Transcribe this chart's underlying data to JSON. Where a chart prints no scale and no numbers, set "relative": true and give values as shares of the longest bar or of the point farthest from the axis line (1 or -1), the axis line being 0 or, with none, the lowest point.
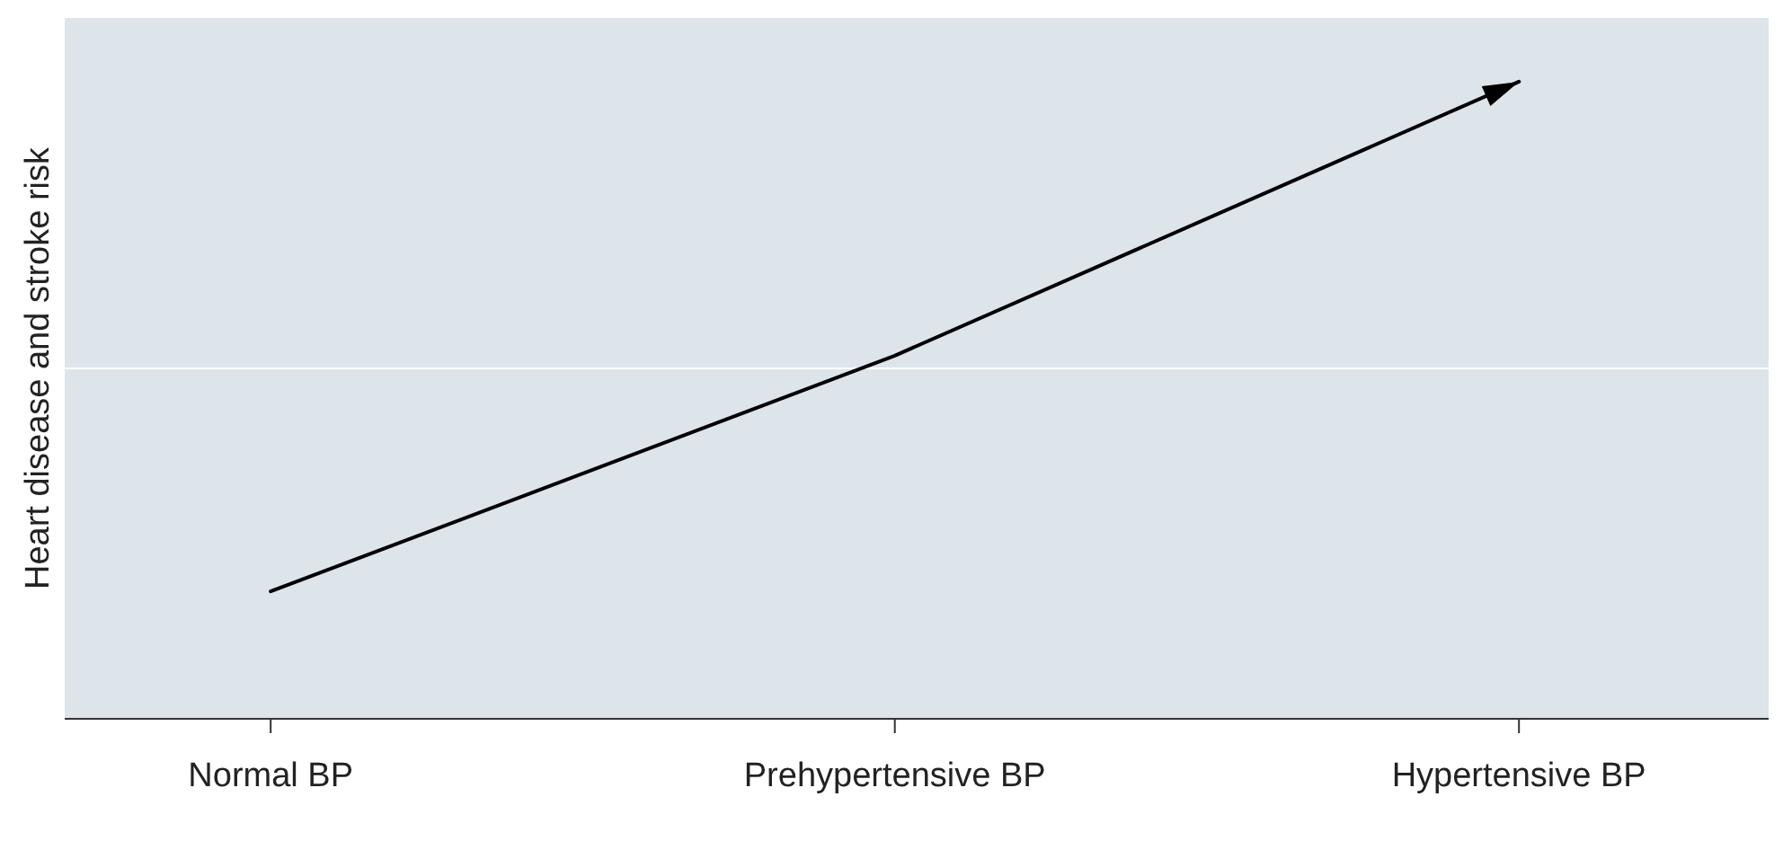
{
  "chart_data": {
    "type": "line",
    "ylabel": "Heart disease and stroke risk",
    "categories": [
      "Normal BP",
      "Prehypertensive BP",
      "Hypertensive BP"
    ],
    "series": [
      {
        "color": "#000000",
        "values": [
          0.2,
          0.57,
          1
        ]
      }
    ],
    "ref_lines": [
      {
        "axis": "y",
        "value": 0.55,
        "color": "#ffffff"
      }
    ],
    "relative": true,
    "marker": "none",
    "line_style": "solid"
  }
}
